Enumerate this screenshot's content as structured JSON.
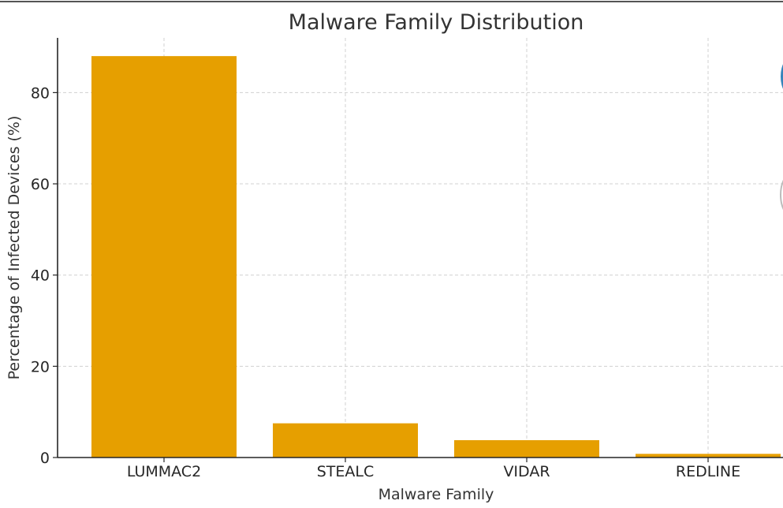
{
  "chart_data": {
    "type": "bar",
    "title": "Malware Family Distribution",
    "xlabel": "Malware Family",
    "ylabel": "Percentage of Infected Devices (%)",
    "categories": [
      "LUMMAC2",
      "STEALC",
      "VIDAR",
      "REDLINE"
    ],
    "values": [
      88,
      7.5,
      3.8,
      0.8
    ],
    "ylim": [
      0,
      92
    ],
    "yticks": [
      0,
      20,
      40,
      60,
      80
    ],
    "bar_color": "#e69f00",
    "grid": true,
    "legend": "none"
  }
}
